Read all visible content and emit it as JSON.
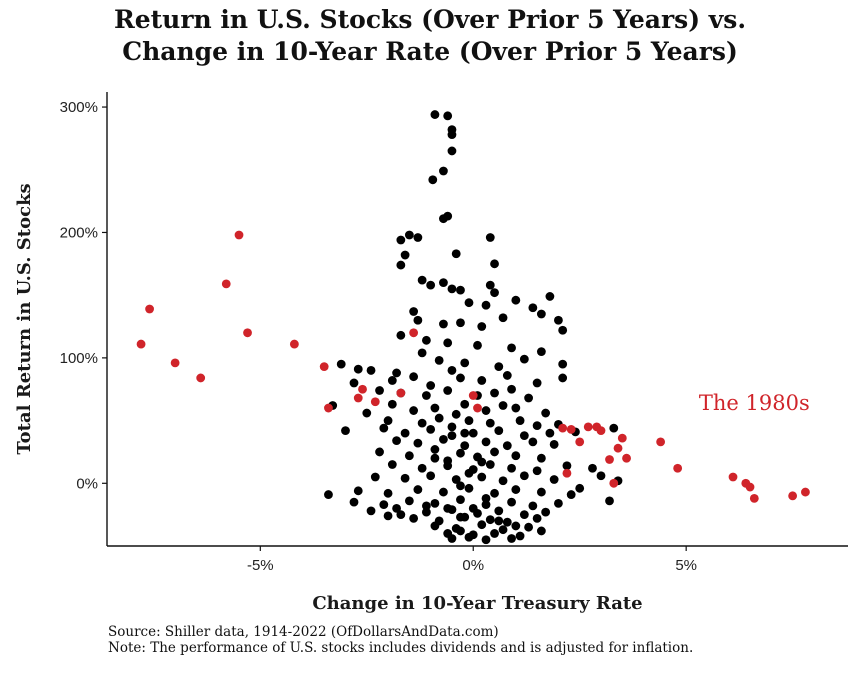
{
  "chart_data": {
    "type": "scatter",
    "title_lines": [
      "Return in U.S. Stocks (Over Prior 5 Years) vs.",
      "Change in 10-Year Rate (Over Prior 5 Years)"
    ],
    "xlabel": "Change in 10-Year Treasury Rate",
    "ylabel": "Total Return in U.S. Stocks",
    "xlim": [
      -8.6,
      8.8
    ],
    "ylim": [
      -0.5,
      3.12
    ],
    "x_ticks": [
      {
        "value": -5,
        "label": "-5%"
      },
      {
        "value": 0,
        "label": "0%"
      },
      {
        "value": 5,
        "label": "5%"
      }
    ],
    "y_ticks": [
      {
        "value": 0,
        "label": "0%"
      },
      {
        "value": 1,
        "label": "100%"
      },
      {
        "value": 2,
        "label": "200%"
      },
      {
        "value": 3,
        "label": "300%"
      }
    ],
    "grid": false,
    "annotation": {
      "text": "The 1980s",
      "x": 6.6,
      "y": 0.64
    },
    "series": [
      {
        "color": "#000000",
        "points": [
          [
            -0.9,
            2.94
          ],
          [
            -0.6,
            2.93
          ],
          [
            -0.5,
            2.82
          ],
          [
            -0.5,
            2.78
          ],
          [
            -0.5,
            2.65
          ],
          [
            -0.7,
            2.49
          ],
          [
            -0.95,
            2.42
          ],
          [
            -0.6,
            2.13
          ],
          [
            -0.7,
            2.11
          ],
          [
            -1.5,
            1.98
          ],
          [
            -1.7,
            1.94
          ],
          [
            -1.3,
            1.96
          ],
          [
            0.4,
            1.96
          ],
          [
            -0.4,
            1.83
          ],
          [
            -1.6,
            1.82
          ],
          [
            -1.7,
            1.74
          ],
          [
            0.5,
            1.75
          ],
          [
            -1.2,
            1.62
          ],
          [
            -0.7,
            1.6
          ],
          [
            -1.0,
            1.58
          ],
          [
            0.4,
            1.58
          ],
          [
            -0.3,
            1.54
          ],
          [
            -0.5,
            1.55
          ],
          [
            0.5,
            1.52
          ],
          [
            1.8,
            1.49
          ],
          [
            1.0,
            1.46
          ],
          [
            0.3,
            1.42
          ],
          [
            -0.1,
            1.44
          ],
          [
            1.4,
            1.4
          ],
          [
            -1.4,
            1.37
          ],
          [
            1.6,
            1.35
          ],
          [
            0.7,
            1.32
          ],
          [
            2.0,
            1.3
          ],
          [
            -1.3,
            1.3
          ],
          [
            -0.7,
            1.27
          ],
          [
            -0.3,
            1.28
          ],
          [
            0.2,
            1.25
          ],
          [
            2.1,
            1.22
          ],
          [
            -1.7,
            1.18
          ],
          [
            -1.1,
            1.14
          ],
          [
            -0.6,
            1.12
          ],
          [
            0.1,
            1.1
          ],
          [
            0.9,
            1.08
          ],
          [
            1.6,
            1.05
          ],
          [
            -1.2,
            1.04
          ],
          [
            -3.1,
            0.95
          ],
          [
            -2.4,
            0.9
          ],
          [
            -2.7,
            0.91
          ],
          [
            -1.8,
            0.88
          ],
          [
            -0.8,
            0.98
          ],
          [
            -0.2,
            0.96
          ],
          [
            0.6,
            0.93
          ],
          [
            1.2,
            0.99
          ],
          [
            2.1,
            0.95
          ],
          [
            -0.5,
            0.9
          ],
          [
            -2.8,
            0.8
          ],
          [
            -1.9,
            0.82
          ],
          [
            -1.4,
            0.85
          ],
          [
            -1.0,
            0.78
          ],
          [
            -0.3,
            0.84
          ],
          [
            0.2,
            0.82
          ],
          [
            0.8,
            0.86
          ],
          [
            1.5,
            0.8
          ],
          [
            2.1,
            0.84
          ],
          [
            -2.2,
            0.74
          ],
          [
            -1.7,
            0.72
          ],
          [
            -1.1,
            0.7
          ],
          [
            -0.6,
            0.74
          ],
          [
            0.1,
            0.7
          ],
          [
            0.5,
            0.72
          ],
          [
            0.9,
            0.75
          ],
          [
            1.3,
            0.68
          ],
          [
            -3.3,
            0.62
          ],
          [
            -1.9,
            0.63
          ],
          [
            -2.5,
            0.56
          ],
          [
            -1.4,
            0.58
          ],
          [
            -0.9,
            0.6
          ],
          [
            -0.4,
            0.55
          ],
          [
            0.3,
            0.58
          ],
          [
            0.7,
            0.62
          ],
          [
            1.0,
            0.6
          ],
          [
            1.7,
            0.56
          ],
          [
            -0.2,
            0.63
          ],
          [
            -2.0,
            0.5
          ],
          [
            -1.2,
            0.48
          ],
          [
            -0.8,
            0.52
          ],
          [
            -0.1,
            0.5
          ],
          [
            0.4,
            0.48
          ],
          [
            1.1,
            0.5
          ],
          [
            1.5,
            0.46
          ],
          [
            2.0,
            0.47
          ],
          [
            -0.5,
            0.45
          ],
          [
            -3.0,
            0.42
          ],
          [
            -2.1,
            0.44
          ],
          [
            -1.6,
            0.4
          ],
          [
            -1.0,
            0.43
          ],
          [
            -0.5,
            0.38
          ],
          [
            0.0,
            0.4
          ],
          [
            0.6,
            0.42
          ],
          [
            1.2,
            0.38
          ],
          [
            1.8,
            0.4
          ],
          [
            3.3,
            0.44
          ],
          [
            2.4,
            0.41
          ],
          [
            -1.8,
            0.34
          ],
          [
            -1.3,
            0.32
          ],
          [
            -0.7,
            0.35
          ],
          [
            -0.2,
            0.3
          ],
          [
            0.3,
            0.33
          ],
          [
            0.8,
            0.3
          ],
          [
            1.4,
            0.33
          ],
          [
            1.9,
            0.31
          ],
          [
            -0.9,
            0.27
          ],
          [
            -2.2,
            0.25
          ],
          [
            -1.5,
            0.22
          ],
          [
            -0.9,
            0.2
          ],
          [
            -0.3,
            0.24
          ],
          [
            0.1,
            0.21
          ],
          [
            0.5,
            0.25
          ],
          [
            1.0,
            0.22
          ],
          [
            1.6,
            0.2
          ],
          [
            -0.6,
            0.18
          ],
          [
            0.2,
            0.17
          ],
          [
            -1.9,
            0.15
          ],
          [
            -1.2,
            0.12
          ],
          [
            -0.6,
            0.14
          ],
          [
            0.0,
            0.11
          ],
          [
            0.4,
            0.15
          ],
          [
            0.9,
            0.12
          ],
          [
            1.5,
            0.1
          ],
          [
            2.2,
            0.14
          ],
          [
            2.8,
            0.12
          ],
          [
            3.4,
            0.02
          ],
          [
            -0.1,
            0.08
          ],
          [
            -2.3,
            0.05
          ],
          [
            -1.6,
            0.04
          ],
          [
            -1.0,
            0.06
          ],
          [
            -0.4,
            0.03
          ],
          [
            0.2,
            0.05
          ],
          [
            0.7,
            0.02
          ],
          [
            1.2,
            0.06
          ],
          [
            1.9,
            0.03
          ],
          [
            3.0,
            0.06
          ],
          [
            -0.3,
            -0.02
          ],
          [
            -3.4,
            -0.09
          ],
          [
            -2.7,
            -0.06
          ],
          [
            -2.0,
            -0.08
          ],
          [
            -1.3,
            -0.05
          ],
          [
            -0.7,
            -0.07
          ],
          [
            -0.1,
            -0.04
          ],
          [
            0.5,
            -0.08
          ],
          [
            1.0,
            -0.05
          ],
          [
            1.6,
            -0.07
          ],
          [
            2.3,
            -0.09
          ],
          [
            3.2,
            -0.14
          ],
          [
            0.3,
            -0.12
          ],
          [
            -2.8,
            -0.15
          ],
          [
            -2.1,
            -0.17
          ],
          [
            -1.5,
            -0.14
          ],
          [
            -0.9,
            -0.16
          ],
          [
            -0.3,
            -0.13
          ],
          [
            0.3,
            -0.17
          ],
          [
            0.9,
            -0.15
          ],
          [
            1.4,
            -0.18
          ],
          [
            2.0,
            -0.16
          ],
          [
            -0.6,
            -0.2
          ],
          [
            -2.4,
            -0.22
          ],
          [
            -1.8,
            -0.2
          ],
          [
            -1.1,
            -0.23
          ],
          [
            -0.5,
            -0.21
          ],
          [
            0.1,
            -0.24
          ],
          [
            0.6,
            -0.22
          ],
          [
            1.2,
            -0.25
          ],
          [
            1.7,
            -0.23
          ],
          [
            -0.2,
            -0.27
          ],
          [
            -2.0,
            -0.26
          ],
          [
            -1.4,
            -0.28
          ],
          [
            -0.8,
            -0.3
          ],
          [
            -0.3,
            -0.27
          ],
          [
            0.4,
            -0.29
          ],
          [
            0.8,
            -0.31
          ],
          [
            1.5,
            -0.28
          ],
          [
            -1.7,
            -0.25
          ],
          [
            1.0,
            -0.34
          ],
          [
            -0.9,
            -0.34
          ],
          [
            -0.4,
            -0.36
          ],
          [
            0.2,
            -0.33
          ],
          [
            0.7,
            -0.37
          ],
          [
            1.3,
            -0.35
          ],
          [
            1.6,
            -0.38
          ],
          [
            -0.6,
            -0.4
          ],
          [
            0.0,
            -0.41
          ],
          [
            0.5,
            -0.4
          ],
          [
            1.1,
            -0.42
          ],
          [
            -0.5,
            -0.44
          ],
          [
            -0.1,
            -0.43
          ],
          [
            0.3,
            -0.45
          ],
          [
            0.9,
            -0.44
          ],
          [
            -0.3,
            -0.38
          ],
          [
            0.6,
            -0.3
          ],
          [
            -1.1,
            -0.18
          ],
          [
            2.5,
            -0.04
          ],
          [
            0.0,
            -0.2
          ],
          [
            -0.2,
            0.4
          ]
        ]
      },
      {
        "color": "#d0242a",
        "points": [
          [
            -7.8,
            1.11
          ],
          [
            -7.6,
            1.39
          ],
          [
            -7.0,
            0.96
          ],
          [
            -6.4,
            0.84
          ],
          [
            -5.8,
            1.59
          ],
          [
            -5.5,
            1.98
          ],
          [
            -5.3,
            1.2
          ],
          [
            -4.2,
            1.11
          ],
          [
            -3.5,
            0.93
          ],
          [
            -3.4,
            0.6
          ],
          [
            -2.6,
            0.75
          ],
          [
            -2.7,
            0.68
          ],
          [
            -2.3,
            0.65
          ],
          [
            -1.7,
            0.72
          ],
          [
            -1.4,
            1.2
          ],
          [
            0.0,
            0.7
          ],
          [
            0.1,
            0.6
          ],
          [
            2.1,
            0.44
          ],
          [
            2.3,
            0.43
          ],
          [
            2.5,
            0.33
          ],
          [
            2.7,
            0.45
          ],
          [
            2.9,
            0.45
          ],
          [
            3.0,
            0.42
          ],
          [
            3.2,
            0.19
          ],
          [
            3.4,
            0.28
          ],
          [
            3.5,
            0.36
          ],
          [
            3.6,
            0.2
          ],
          [
            3.3,
            0.0
          ],
          [
            2.2,
            0.08
          ],
          [
            4.4,
            0.33
          ],
          [
            4.8,
            0.12
          ],
          [
            6.1,
            0.05
          ],
          [
            6.4,
            0.0
          ],
          [
            6.5,
            -0.03
          ],
          [
            6.6,
            -0.12
          ],
          [
            7.5,
            -0.1
          ],
          [
            7.8,
            -0.07
          ]
        ]
      }
    ]
  },
  "footer": {
    "source": "Source: Shiller data, 1914-2022 (OfDollarsAndData.com)",
    "note": "Note: The performance of U.S. stocks includes dividends and is adjusted for inflation."
  }
}
